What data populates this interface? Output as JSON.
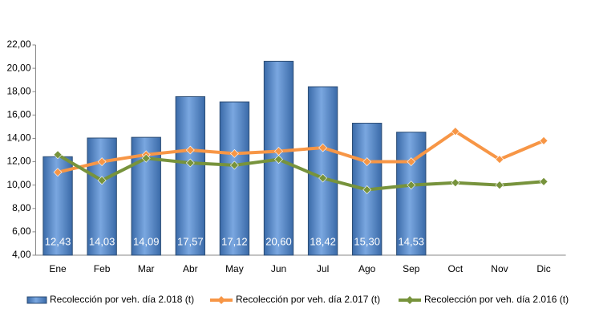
{
  "chart_data": {
    "type": "bar-line",
    "categories": [
      "Ene",
      "Feb",
      "Mar",
      "Abr",
      "May",
      "Jun",
      "Jul",
      "Ago",
      "Sep",
      "Oct",
      "Nov",
      "Dic"
    ],
    "ylim": [
      4,
      22
    ],
    "yticks": [
      {
        "value": 4,
        "label": "4,00"
      },
      {
        "value": 6,
        "label": "6,00"
      },
      {
        "value": 8,
        "label": "8,00"
      },
      {
        "value": 10,
        "label": "10,00"
      },
      {
        "value": 12,
        "label": "12,00"
      },
      {
        "value": 14,
        "label": "14,00"
      },
      {
        "value": 16,
        "label": "16,00"
      },
      {
        "value": 18,
        "label": "18,00"
      },
      {
        "value": 20,
        "label": "20,00"
      },
      {
        "value": 22,
        "label": "22,00"
      }
    ],
    "grid": false,
    "legend": "bottom",
    "series": [
      {
        "name": "Recolección por veh. día 2.018 (t)",
        "type": "bar",
        "color": "#4f81bd",
        "values": [
          12.43,
          14.03,
          14.09,
          17.57,
          17.12,
          20.6,
          18.42,
          15.3,
          14.53,
          null,
          null,
          null
        ],
        "value_labels": [
          "12,43",
          "14,03",
          "14,09",
          "17,57",
          "17,12",
          "20,60",
          "18,42",
          "15,30",
          "14,53",
          null,
          null,
          null
        ]
      },
      {
        "name": "Recolección por veh. día 2.017 (t)",
        "type": "line",
        "color": "#f79646",
        "values": [
          11.1,
          12.0,
          12.6,
          13.0,
          12.7,
          12.9,
          13.2,
          12.0,
          12.0,
          14.6,
          12.2,
          13.8
        ]
      },
      {
        "name": "Recolección por veh. día 2.016 (t)",
        "type": "line",
        "color": "#77933c",
        "values": [
          12.6,
          10.4,
          12.3,
          11.9,
          11.7,
          12.2,
          10.6,
          9.6,
          10.0,
          10.2,
          10.0,
          10.3
        ]
      }
    ]
  }
}
